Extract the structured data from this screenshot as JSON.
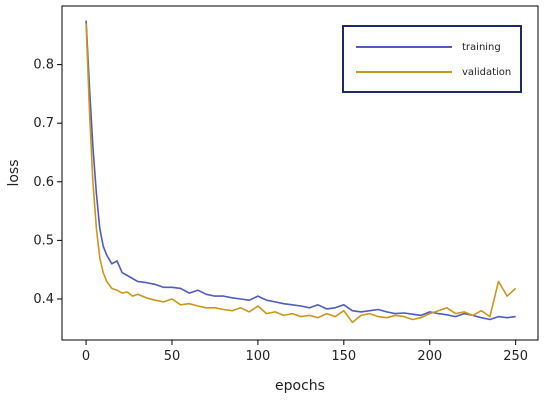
{
  "chart_data": {
    "type": "line",
    "title": "",
    "xlabel": "epochs",
    "ylabel": "loss",
    "xlim": [
      -14,
      263
    ],
    "ylim": [
      0.33,
      0.9
    ],
    "xticks": [
      0,
      50,
      100,
      150,
      200,
      250
    ],
    "yticks": [
      0.4,
      0.5,
      0.6,
      0.7,
      0.8
    ],
    "grid": false,
    "legend": "top-right",
    "series": [
      {
        "name": "training",
        "color": "#4f5bbd",
        "x": [
          0,
          2,
          4,
          6,
          8,
          10,
          12,
          15,
          18,
          21,
          24,
          27,
          30,
          35,
          40,
          45,
          50,
          55,
          60,
          65,
          70,
          75,
          80,
          85,
          90,
          95,
          100,
          105,
          110,
          115,
          120,
          125,
          130,
          135,
          140,
          145,
          150,
          155,
          160,
          165,
          170,
          175,
          180,
          185,
          190,
          195,
          200,
          205,
          210,
          215,
          220,
          225,
          230,
          235,
          240,
          245,
          250
        ],
        "values": [
          0.875,
          0.76,
          0.66,
          0.58,
          0.52,
          0.49,
          0.475,
          0.46,
          0.465,
          0.445,
          0.44,
          0.435,
          0.43,
          0.428,
          0.425,
          0.42,
          0.42,
          0.418,
          0.41,
          0.415,
          0.408,
          0.405,
          0.405,
          0.402,
          0.4,
          0.398,
          0.405,
          0.398,
          0.395,
          0.392,
          0.39,
          0.388,
          0.385,
          0.39,
          0.383,
          0.385,
          0.39,
          0.38,
          0.378,
          0.38,
          0.382,
          0.378,
          0.375,
          0.376,
          0.374,
          0.372,
          0.378,
          0.375,
          0.373,
          0.37,
          0.375,
          0.372,
          0.368,
          0.365,
          0.37,
          0.368,
          0.37
        ]
      },
      {
        "name": "validation",
        "color": "#c8971c",
        "x": [
          0,
          2,
          4,
          6,
          8,
          10,
          12,
          15,
          18,
          21,
          24,
          27,
          30,
          35,
          40,
          45,
          50,
          55,
          60,
          65,
          70,
          75,
          80,
          85,
          90,
          95,
          100,
          105,
          110,
          115,
          120,
          125,
          130,
          135,
          140,
          145,
          150,
          155,
          160,
          165,
          170,
          175,
          180,
          185,
          190,
          195,
          200,
          205,
          210,
          215,
          220,
          225,
          230,
          235,
          240,
          245,
          250
        ],
        "values": [
          0.87,
          0.72,
          0.6,
          0.52,
          0.47,
          0.445,
          0.43,
          0.418,
          0.415,
          0.41,
          0.412,
          0.405,
          0.408,
          0.402,
          0.398,
          0.395,
          0.4,
          0.39,
          0.392,
          0.388,
          0.385,
          0.385,
          0.382,
          0.38,
          0.385,
          0.378,
          0.388,
          0.375,
          0.378,
          0.372,
          0.375,
          0.37,
          0.372,
          0.368,
          0.375,
          0.37,
          0.38,
          0.36,
          0.372,
          0.375,
          0.37,
          0.368,
          0.372,
          0.37,
          0.365,
          0.368,
          0.375,
          0.38,
          0.385,
          0.375,
          0.378,
          0.372,
          0.38,
          0.37,
          0.43,
          0.405,
          0.418
        ]
      }
    ]
  }
}
